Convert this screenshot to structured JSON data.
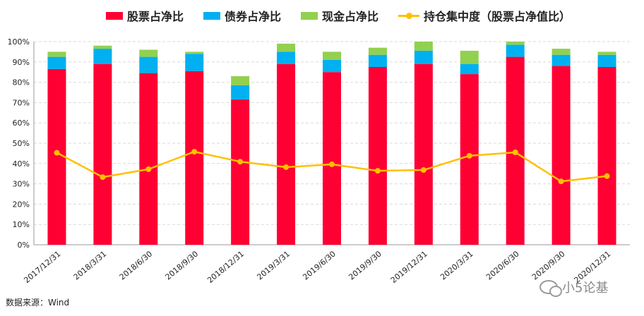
{
  "chart_data": {
    "type": "bar",
    "stacked": true,
    "categories": [
      "2017/12/31",
      "2018/3/31",
      "2018/6/30",
      "2018/9/30",
      "2018/12/31",
      "2019/3/31",
      "2019/6/30",
      "2019/9/30",
      "2019/12/31",
      "2020/3/31",
      "2020/6/30",
      "2020/9/30",
      "2020/12/31"
    ],
    "series": [
      {
        "name": "股票占净比",
        "color": "#FF0033",
        "values": [
          86.5,
          89.0,
          84.5,
          85.5,
          71.5,
          89.0,
          85.0,
          87.5,
          89.0,
          84.0,
          92.5,
          88.0,
          87.5
        ]
      },
      {
        "name": "债券占净比",
        "color": "#00B0F0",
        "values": [
          6.0,
          7.5,
          8.0,
          8.5,
          7.0,
          6.0,
          6.0,
          6.0,
          6.5,
          5.0,
          6.0,
          5.5,
          6.0
        ]
      },
      {
        "name": "现金占净比",
        "color": "#92D050",
        "values": [
          2.5,
          1.5,
          3.5,
          1.0,
          4.5,
          4.0,
          4.0,
          3.5,
          4.5,
          6.5,
          1.5,
          3.0,
          1.5
        ]
      }
    ],
    "line_series": {
      "name": "持仓集中度（股票占净值比）",
      "color": "#FFC000",
      "values": [
        45.3,
        33.3,
        37.2,
        45.8,
        40.9,
        38.2,
        39.6,
        36.4,
        36.8,
        43.8,
        45.5,
        31.2,
        33.8
      ]
    },
    "ylim": [
      0,
      100
    ],
    "yticks": [
      "0%",
      "10%",
      "20%",
      "30%",
      "40%",
      "50%",
      "60%",
      "70%",
      "80%",
      "90%",
      "100%"
    ],
    "grid": true,
    "legend_position": "top"
  },
  "source": "数据来源：Wind",
  "watermark": "小5论基"
}
